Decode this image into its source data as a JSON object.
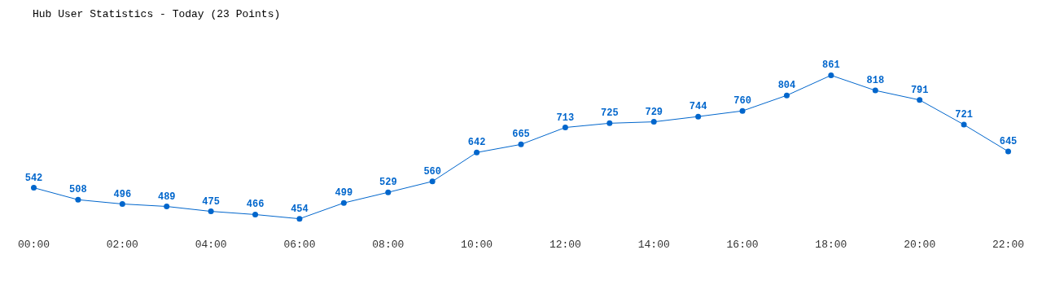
{
  "chart_data": {
    "type": "line",
    "title": "Hub User Statistics - Today (23 Points)",
    "categories": [
      "00:00",
      null,
      "02:00",
      null,
      "04:00",
      null,
      "06:00",
      null,
      "08:00",
      null,
      "10:00",
      null,
      "12:00",
      null,
      "14:00",
      null,
      "16:00",
      null,
      "18:00",
      null,
      "20:00",
      null,
      "22:00"
    ],
    "series": [
      {
        "color": "#0066cc",
        "values": [
          542,
          508,
          496,
          489,
          475,
          466,
          454,
          499,
          529,
          560,
          642,
          665,
          713,
          725,
          729,
          744,
          760,
          804,
          861,
          818,
          791,
          721,
          645
        ]
      }
    ],
    "data_labels": true,
    "grid": false,
    "legend": false,
    "marker": "circle",
    "line_style": "solid"
  }
}
